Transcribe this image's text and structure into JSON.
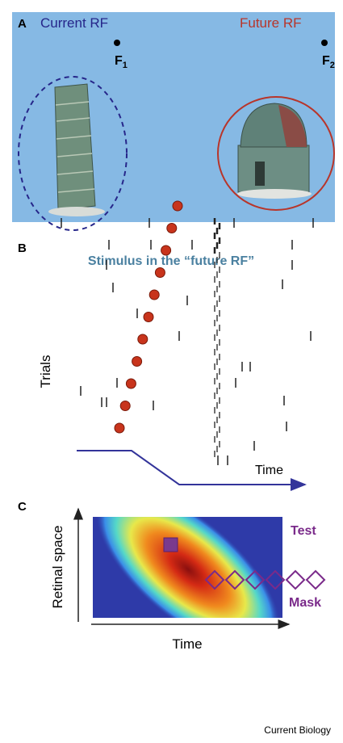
{
  "panel_a": {
    "letter": "A",
    "current_rf": "Current RF",
    "future_rf": "Future RF",
    "fixation_1": {
      "label": "F",
      "subscript": "1"
    },
    "fixation_2": {
      "label": "F",
      "subscript": "2"
    }
  },
  "panel_b": {
    "letter": "B",
    "title": "Stimulus in the “future RF”",
    "y_label": "Trials",
    "x_label": "Time"
  },
  "panel_c": {
    "letter": "C",
    "y_label": "Retinal space",
    "x_label": "Time",
    "test_label": "Test",
    "mask_label": "Mask"
  },
  "footer": {
    "journal": "Current Biology"
  }
}
